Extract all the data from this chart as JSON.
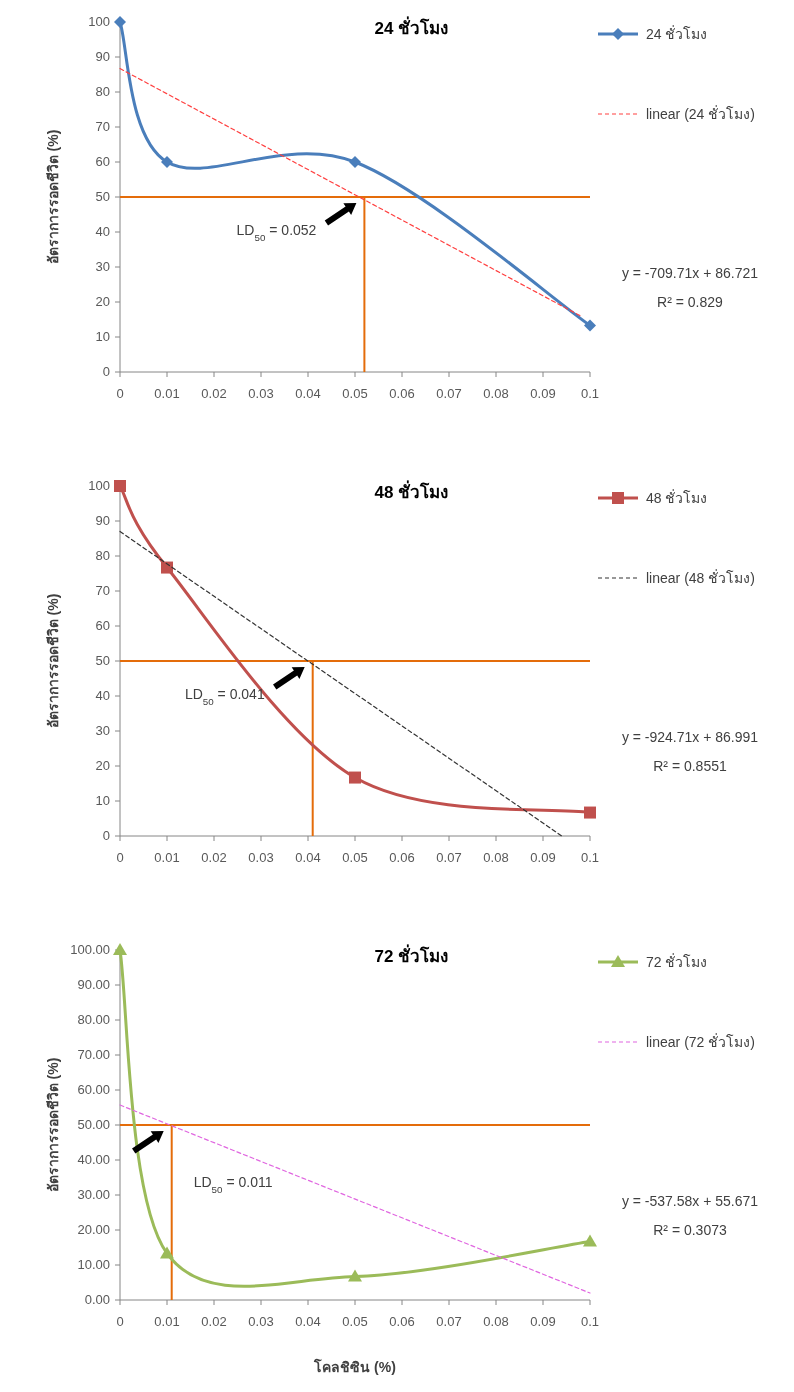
{
  "chart_data": [
    {
      "type": "line",
      "title": "24 ชั่วโมง",
      "ylabel": "อัตราการรอดชีวิต (%)",
      "legend": "top right",
      "series": [
        {
          "name": "24 ชั่วโมง",
          "color": "#4a7ebb",
          "marker": "diamond",
          "x": [
            0,
            0.01,
            0.05,
            0.1
          ],
          "values": [
            100,
            60,
            60,
            13.3
          ]
        },
        {
          "name": "linear (24 ชั่วโมง)",
          "color": "#ff4040",
          "marker": "none",
          "line_style": "dashed",
          "x": [
            0,
            0.098
          ],
          "values": [
            86.7,
            16
          ]
        }
      ],
      "xlim": [
        0,
        0.1
      ],
      "xticks": [
        0,
        0.01,
        0.02,
        0.03,
        0.04,
        0.05,
        0.06,
        0.07,
        0.08,
        0.09,
        0.1
      ],
      "ylim": [
        0,
        100
      ],
      "yticks": [
        0,
        10,
        20,
        30,
        40,
        50,
        60,
        70,
        80,
        90,
        100
      ],
      "ref_lines": [
        {
          "axis": "y",
          "value": 50,
          "color": "#e46c0a"
        },
        {
          "axis": "x",
          "value": 0.052,
          "color": "#e46c0a"
        }
      ],
      "annotations": [
        "LD$_{50}$ = 0.052",
        "y = -709.71x + 86.721",
        "R² = 0.829"
      ]
    },
    {
      "type": "line",
      "title": "48 ชั่วโมง",
      "ylabel": "อัตราการรอดชีวิต (%)",
      "legend": "top right",
      "series": [
        {
          "name": "48 ชั่วโมง",
          "color": "#c0504d",
          "marker": "square",
          "x": [
            0,
            0.01,
            0.05,
            0.1
          ],
          "values": [
            100,
            76.7,
            16.7,
            6.7
          ]
        },
        {
          "name": "linear (48 ชั่วโมง)",
          "color": "#333333",
          "marker": "none",
          "line_style": "dashed",
          "x": [
            0,
            0.094
          ],
          "values": [
            87,
            0
          ]
        }
      ],
      "xlim": [
        0,
        0.1
      ],
      "xticks": [
        0,
        0.01,
        0.02,
        0.03,
        0.04,
        0.05,
        0.06,
        0.07,
        0.08,
        0.09,
        0.1
      ],
      "ylim": [
        0,
        100
      ],
      "yticks": [
        0,
        10,
        20,
        30,
        40,
        50,
        60,
        70,
        80,
        90,
        100
      ],
      "ref_lines": [
        {
          "axis": "y",
          "value": 50,
          "color": "#e46c0a"
        },
        {
          "axis": "x",
          "value": 0.041,
          "color": "#e46c0a"
        }
      ],
      "annotations": [
        "LD$_{50}$ = 0.041",
        "y = -924.71x + 86.991",
        "R² = 0.8551"
      ]
    },
    {
      "type": "line",
      "title": "72 ชั่วโมง",
      "ylabel": "อัตราการรอดชีวิต (%)",
      "xlabel": "โคลชิซิน (%)",
      "legend": "top right",
      "series": [
        {
          "name": "72 ชั่วโมง",
          "color": "#9bbb59",
          "marker": "triangle",
          "x": [
            0,
            0.01,
            0.05,
            0.1
          ],
          "values": [
            100,
            13.3,
            6.7,
            16.7
          ]
        },
        {
          "name": "linear (72 ชั่วโมง)",
          "color": "#e066e0",
          "marker": "none",
          "line_style": "dashed",
          "x": [
            0,
            0.1
          ],
          "values": [
            55.7,
            2
          ]
        }
      ],
      "xlim": [
        0,
        0.1
      ],
      "xticks": [
        0,
        0.01,
        0.02,
        0.03,
        0.04,
        0.05,
        0.06,
        0.07,
        0.08,
        0.09,
        0.1
      ],
      "ylim": [
        0,
        100
      ],
      "yticks": [
        {
          "value": 0,
          "label": "0.00"
        },
        {
          "value": 10,
          "label": "10.00"
        },
        {
          "value": 20,
          "label": "20.00"
        },
        {
          "value": 30,
          "label": "30.00"
        },
        {
          "value": 40,
          "label": "40.00"
        },
        {
          "value": 50,
          "label": "50.00"
        },
        {
          "value": 60,
          "label": "60.00"
        },
        {
          "value": 70,
          "label": "70.00"
        },
        {
          "value": 80,
          "label": "80.00"
        },
        {
          "value": 90,
          "label": "90.00"
        },
        {
          "value": 100,
          "label": "100.00"
        }
      ],
      "ref_lines": [
        {
          "axis": "y",
          "value": 50,
          "color": "#e46c0a"
        },
        {
          "axis": "x",
          "value": 0.011,
          "color": "#e46c0a"
        }
      ],
      "annotations": [
        "LD$_{50}$ = 0.011",
        "y = -537.58x + 55.671",
        "R² = 0.3073"
      ]
    }
  ]
}
